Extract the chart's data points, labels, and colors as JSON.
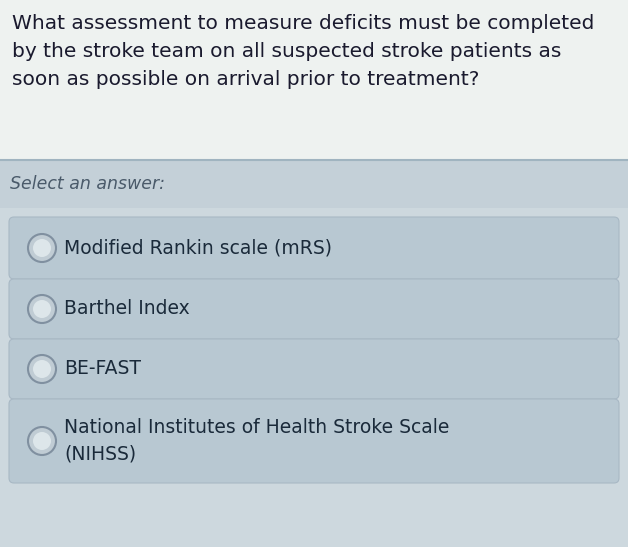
{
  "question_text": "What assessment to measure deficits must be completed\nby the stroke team on all suspected stroke patients as\nsoon as possible on arrival prior to treatment?",
  "select_label": "Select an answer:",
  "options": [
    "Modified Rankin scale (mRS)",
    "Barthel Index",
    "BE-FAST",
    "National Institutes of Health Stroke Scale\n(NIHSS)"
  ],
  "bg_color": "#cdd8de",
  "question_bg": "#eef2f0",
  "select_bg": "#c4d0d8",
  "option_box_color": "#b8c8d2",
  "option_box_edge": "#a8b8c4",
  "radio_fill": "#c0ccd4",
  "radio_inner": "#dde6ea",
  "radio_edge": "#8090a0",
  "question_text_color": "#1a1a2e",
  "select_text_color": "#4a5a6a",
  "option_text_color": "#1a2a3a",
  "question_fontsize": 14.5,
  "select_fontsize": 12.5,
  "option_fontsize": 13.5,
  "fig_width": 6.28,
  "fig_height": 5.47,
  "dpi": 100
}
